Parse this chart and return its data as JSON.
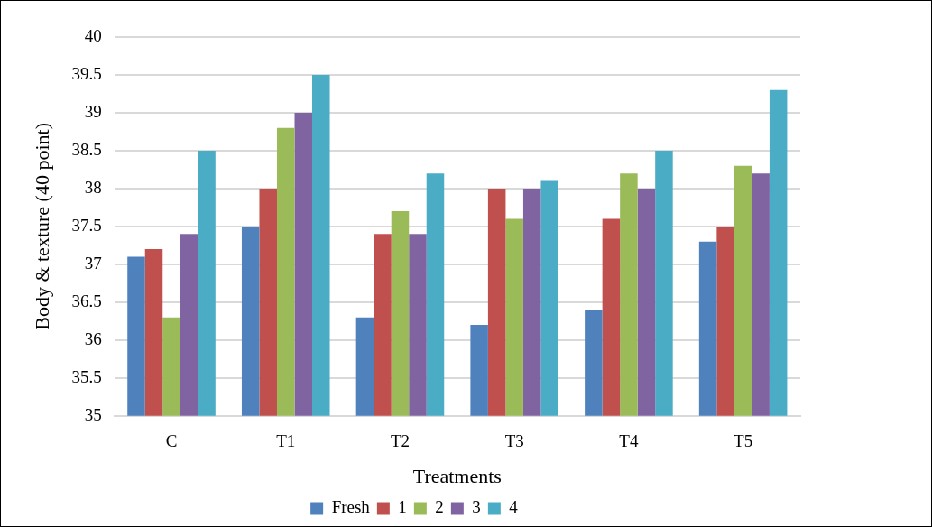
{
  "chart_data": {
    "type": "bar",
    "xlabel": "Treatments",
    "ylabel": "Body & texture (40 point)",
    "categories": [
      "C",
      "T1",
      "T2",
      "T3",
      "T4",
      "T5"
    ],
    "series": [
      {
        "name": "Fresh",
        "color": "#4f81bd",
        "values": [
          37.1,
          37.5,
          36.3,
          36.2,
          36.4,
          37.3
        ]
      },
      {
        "name": "1",
        "color": "#c0504d",
        "values": [
          37.2,
          38.0,
          37.4,
          38.0,
          37.6,
          37.5
        ]
      },
      {
        "name": "2",
        "color": "#9bbb59",
        "values": [
          36.3,
          38.8,
          37.7,
          37.6,
          38.2,
          38.3
        ]
      },
      {
        "name": "3",
        "color": "#8064a2",
        "values": [
          37.4,
          39.0,
          37.4,
          38.0,
          38.0,
          38.2
        ]
      },
      {
        "name": "4",
        "color": "#4bacc6",
        "values": [
          38.5,
          39.5,
          38.2,
          38.1,
          38.5,
          39.3
        ]
      }
    ],
    "ylim": [
      35,
      40
    ],
    "yticks": [
      35,
      35.5,
      36,
      36.5,
      37,
      37.5,
      38,
      38.5,
      39,
      39.5,
      40
    ],
    "grid": "y",
    "legend": "bottom"
  }
}
